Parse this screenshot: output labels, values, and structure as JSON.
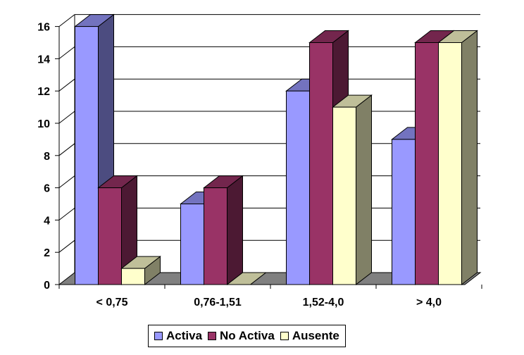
{
  "chart_data": {
    "type": "bar",
    "style": "3d-clustered",
    "categories": [
      "< 0,75",
      "0,76-1,51",
      "1,52-4,0",
      "> 4,0"
    ],
    "series": [
      {
        "name": "Activa",
        "values": [
          16,
          5,
          12,
          9
        ],
        "color": "#9999ff",
        "side_color": "#4c4c80",
        "top_color": "#7373bf"
      },
      {
        "name": "No Activa",
        "values": [
          6,
          6,
          15,
          15
        ],
        "color": "#993366",
        "side_color": "#4c1933",
        "top_color": "#73264d"
      },
      {
        "name": "Ausente",
        "values": [
          1,
          0,
          11,
          15
        ],
        "color": "#ffffcc",
        "side_color": "#808066",
        "top_color": "#bfbf99"
      }
    ],
    "ylim": [
      0,
      16
    ],
    "yticks": [
      "0",
      "2",
      "4",
      "6",
      "8",
      "10",
      "12",
      "14",
      "16"
    ],
    "grid": true,
    "legend_position": "bottom",
    "title": "",
    "xlabel": "",
    "ylabel": ""
  }
}
